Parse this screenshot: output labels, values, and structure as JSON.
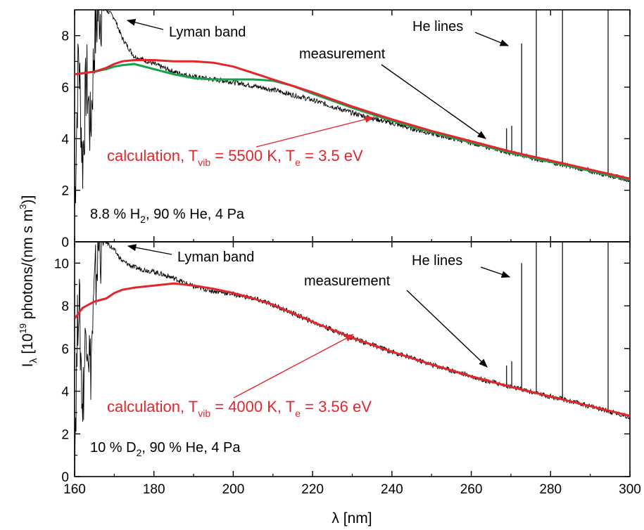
{
  "chart_data": [
    {
      "type": "line",
      "panel": "top",
      "xlim": [
        160,
        300
      ],
      "ylim": [
        0,
        9
      ],
      "x_ticks": [
        160,
        180,
        200,
        220,
        240,
        260,
        280,
        300
      ],
      "y_ticks": [
        0,
        2,
        4,
        6,
        8
      ],
      "grid": false,
      "legend": "none",
      "series": [
        {
          "role": "measurement",
          "color": "#000000",
          "x": [
            160,
            161,
            162,
            163,
            164,
            165,
            166,
            168,
            170,
            172,
            175,
            180,
            185,
            190,
            195,
            200,
            205,
            210,
            215,
            220,
            230,
            240,
            250,
            260,
            270,
            280,
            290,
            300
          ],
          "y": [
            1.2,
            7.5,
            3.0,
            6.5,
            4.2,
            7.8,
            9.0,
            9.0,
            8.7,
            7.9,
            7.2,
            6.9,
            6.6,
            6.4,
            6.3,
            6.2,
            6.05,
            5.9,
            5.7,
            5.5,
            5.0,
            4.6,
            4.2,
            3.85,
            3.45,
            3.1,
            2.75,
            2.4
          ]
        },
        {
          "role": "calculation",
          "color": "#e3262b",
          "x": [
            160,
            165,
            168,
            170,
            172,
            175,
            180,
            185,
            190,
            195,
            200,
            205,
            210,
            215,
            220,
            230,
            240,
            250,
            260,
            270,
            280,
            290,
            300
          ],
          "y": [
            6.5,
            6.6,
            6.75,
            6.9,
            7.0,
            7.05,
            7.05,
            7.0,
            7.0,
            6.95,
            6.8,
            6.55,
            6.3,
            6.05,
            5.8,
            5.25,
            4.75,
            4.3,
            3.9,
            3.5,
            3.15,
            2.8,
            2.45
          ]
        },
        {
          "role": "calculation-2",
          "color": "#15a04a",
          "x": [
            160,
            165,
            168,
            170,
            172,
            175,
            180,
            185,
            190,
            195,
            200,
            205,
            210,
            215,
            220,
            230,
            240,
            250,
            260,
            270,
            280,
            290,
            300
          ],
          "y": [
            6.5,
            6.6,
            6.7,
            6.8,
            6.85,
            6.9,
            6.7,
            6.5,
            6.35,
            6.3,
            6.3,
            6.3,
            6.25,
            6.05,
            5.75,
            5.2,
            4.7,
            4.25,
            3.85,
            3.45,
            3.1,
            2.75,
            2.4
          ]
        }
      ],
      "annotations": {
        "lyman": "Lyman band",
        "he_lines": "He lines",
        "measurement": "measurement",
        "calc_prefix": "calculation, T",
        "calc_vib_sub": "vib",
        "calc_vib_value": " = 5500 K, T",
        "calc_e_sub": "e",
        "calc_e_value": " = 3.5 eV",
        "cond_a": "8.8 % H",
        "cond_sub": "2",
        "cond_b": ", 90 % He, 4 Pa"
      },
      "he_lines": [
        {
          "x": 272.7,
          "peak": 7.7
        },
        {
          "x": 276.4,
          "peak": 9.0
        },
        {
          "x": 283.0,
          "peak": 9.0
        },
        {
          "x": 294.5,
          "peak": 9.0
        },
        {
          "x": 268.9,
          "peak": 4.4
        },
        {
          "x": 270.2,
          "peak": 4.5
        }
      ]
    },
    {
      "type": "line",
      "panel": "bottom",
      "xlim": [
        160,
        300
      ],
      "ylim": [
        0,
        11
      ],
      "x_ticks": [
        160,
        180,
        200,
        220,
        240,
        260,
        280,
        300
      ],
      "y_ticks": [
        0,
        2,
        4,
        6,
        8,
        10
      ],
      "grid": false,
      "legend": "none",
      "series": [
        {
          "role": "measurement",
          "color": "#000000",
          "x": [
            160,
            161,
            162,
            163,
            164,
            165,
            166,
            168,
            170,
            172,
            175,
            180,
            185,
            190,
            195,
            200,
            205,
            210,
            215,
            220,
            230,
            240,
            250,
            260,
            270,
            280,
            290,
            300
          ],
          "y": [
            1.0,
            9.0,
            3.2,
            7.5,
            5.0,
            8.5,
            10.8,
            11.0,
            10.6,
            10.1,
            9.8,
            9.6,
            9.3,
            8.9,
            8.7,
            8.55,
            8.35,
            8.05,
            7.65,
            7.25,
            6.5,
            5.85,
            5.25,
            4.7,
            4.2,
            3.75,
            3.3,
            2.8
          ]
        },
        {
          "role": "calculation",
          "color": "#e3262b",
          "x": [
            160,
            162,
            165,
            168,
            170,
            172,
            175,
            180,
            185,
            190,
            195,
            200,
            205,
            210,
            215,
            220,
            230,
            240,
            250,
            260,
            270,
            280,
            290,
            300
          ],
          "y": [
            7.4,
            7.9,
            8.2,
            8.35,
            8.6,
            8.75,
            8.85,
            8.95,
            9.05,
            8.95,
            8.8,
            8.6,
            8.35,
            8.05,
            7.65,
            7.25,
            6.5,
            5.85,
            5.25,
            4.7,
            4.2,
            3.75,
            3.3,
            2.85
          ]
        }
      ],
      "annotations": {
        "lyman": "Lyman band",
        "he_lines": "He lines",
        "measurement": "measurement",
        "calc_prefix": "calculation, T",
        "calc_vib_sub": "vib",
        "calc_vib_value": " = 4000 K, T",
        "calc_e_sub": "e",
        "calc_e_value": " = 3.56 eV",
        "cond_a": "10 % D",
        "cond_sub": "2",
        "cond_b": ", 90 % He, 4 Pa"
      },
      "he_lines": [
        {
          "x": 272.7,
          "peak": 10.0
        },
        {
          "x": 276.4,
          "peak": 11.0
        },
        {
          "x": 283.0,
          "peak": 11.0
        },
        {
          "x": 294.5,
          "peak": 11.0
        },
        {
          "x": 268.9,
          "peak": 5.2
        },
        {
          "x": 270.2,
          "peak": 5.4
        }
      ]
    }
  ],
  "axes": {
    "xlabel_main": "λ",
    "xlabel_unit": " [nm]",
    "ylabel_main": "I",
    "ylabel_sub": "λ",
    "ylabel_a": " [10",
    "ylabel_exp": "19",
    "ylabel_b": " photons/(nm s m",
    "ylabel_exp2": "3",
    "ylabel_c": ")]"
  }
}
